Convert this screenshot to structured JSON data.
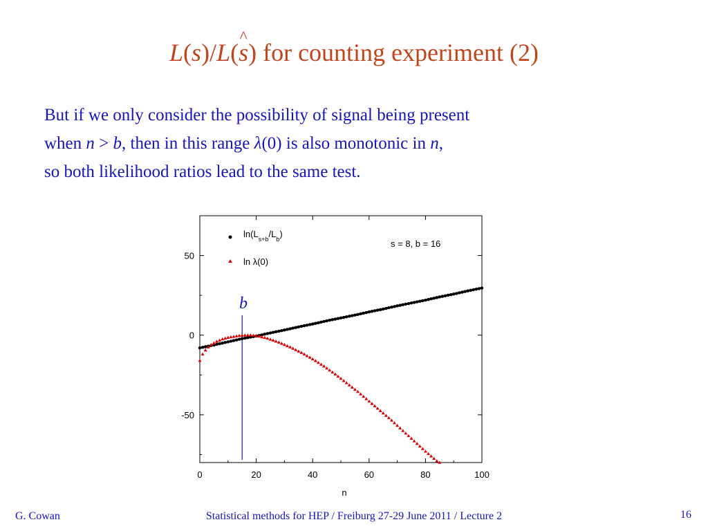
{
  "slide": {
    "title": {
      "prefix_L1": "L",
      "paren1": "(",
      "s1": "s",
      "mid": ")/",
      "L2": "L",
      "paren2": "(",
      "shat": "s",
      "rest": ") for counting experiment (2)"
    },
    "body": {
      "l1": "But if we only consider the possibility of signal being present",
      "l2a": "when ",
      "l2n": "n",
      "l2op": " > ",
      "l2b": "b",
      "l2c": ", then in this range ",
      "l2lambda": "λ",
      "l2d": "(0) is also monotonic in ",
      "l2n2": "n",
      "l2e": ",",
      "l3": "so both likelihood ratios lead to the same test."
    },
    "footer": {
      "author": "G. Cowan",
      "course": "Statistical methods for HEP / Freiburg 27-29 June 2011 / Lecture 2",
      "page": "16"
    }
  },
  "chart_data": {
    "type": "scatter",
    "xlabel": "n",
    "ylabel": "",
    "xlim": [
      0,
      100
    ],
    "ylim": [
      -80,
      75
    ],
    "xticks": [
      "0",
      "20",
      "40",
      "60",
      "80",
      "100"
    ],
    "yticks": [
      "50",
      "0",
      "-50"
    ],
    "annotation": "s = 8, b = 16",
    "marker_label": "b",
    "marker_x": 15,
    "legend_position": "top-left",
    "series": [
      {
        "name": "ln(L_{s+b}/L_b)",
        "legend_main": "ln(L",
        "legend_sub1": "s+b",
        "legend_mid": "/L",
        "legend_sub2": "b",
        "legend_end": ")",
        "color": "#000000",
        "marker": "circle",
        "x": [
          0,
          5,
          10,
          15,
          20,
          25,
          30,
          35,
          40,
          45,
          50,
          55,
          60,
          65,
          70,
          75,
          80,
          85,
          90,
          95,
          100
        ],
        "y": [
          -8,
          -6.2,
          -4.2,
          -2.2,
          -0.6,
          1.4,
          3.2,
          5.2,
          7.0,
          9.0,
          10.8,
          12.6,
          14.6,
          16.4,
          18.4,
          20.2,
          22.0,
          24.0,
          25.8,
          27.8,
          29.6
        ]
      },
      {
        "name": "ln λ(0)",
        "legend_text": "ln λ(0)",
        "color": "#dd0000",
        "marker": "triangle",
        "x": [
          0,
          1,
          2,
          3,
          4,
          6,
          8,
          10,
          12,
          14,
          16,
          18,
          20,
          24,
          28,
          32,
          36,
          40,
          44,
          48,
          52,
          56,
          60,
          64,
          68,
          72,
          76,
          80,
          84,
          88,
          89
        ],
        "y": [
          -16,
          -12,
          -9.5,
          -7.5,
          -6,
          -4,
          -2.5,
          -1.5,
          -0.9,
          -0.3,
          -0.05,
          0,
          -0.3,
          -2,
          -4.5,
          -7.5,
          -11,
          -15,
          -19.5,
          -24.5,
          -30,
          -35.5,
          -41.5,
          -47.5,
          -53.5,
          -60,
          -66.5,
          -73,
          -79,
          -83,
          -84
        ]
      }
    ]
  }
}
